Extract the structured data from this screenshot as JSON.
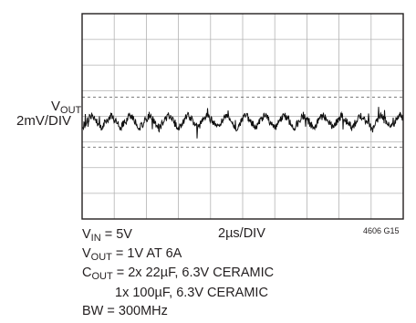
{
  "chart_data": {
    "type": "line",
    "title": "",
    "ylabel": {
      "main": "V",
      "sub": "OUT",
      "scale": "2mV/DIV"
    },
    "xlabel": "2µs/DIV",
    "grid": true,
    "divisions": {
      "x": 10,
      "y": 8
    },
    "dashed_reference_divs": [
      -1.2,
      0.75
    ],
    "series": [
      {
        "signal": "ripple",
        "center_div": -0.2,
        "amplitude_div": 0.25,
        "period_div": 0.6,
        "noise_div": 0.15,
        "spike_div": 0.5
      }
    ],
    "conditions": {
      "vin": {
        "main": "V",
        "sub": "IN",
        "value": " = 5V"
      },
      "vout": {
        "main": "V",
        "sub": "OUT",
        "value": " = 1V AT 6A"
      },
      "cout": {
        "main": "C",
        "sub": "OUT",
        "value": " = 2x 22µF, 6.3V CERAMIC"
      },
      "cout2": "1x 100µF, 6.3V CERAMIC",
      "bw": "BW = 300MHz"
    },
    "figure_id": "4606 G15"
  }
}
